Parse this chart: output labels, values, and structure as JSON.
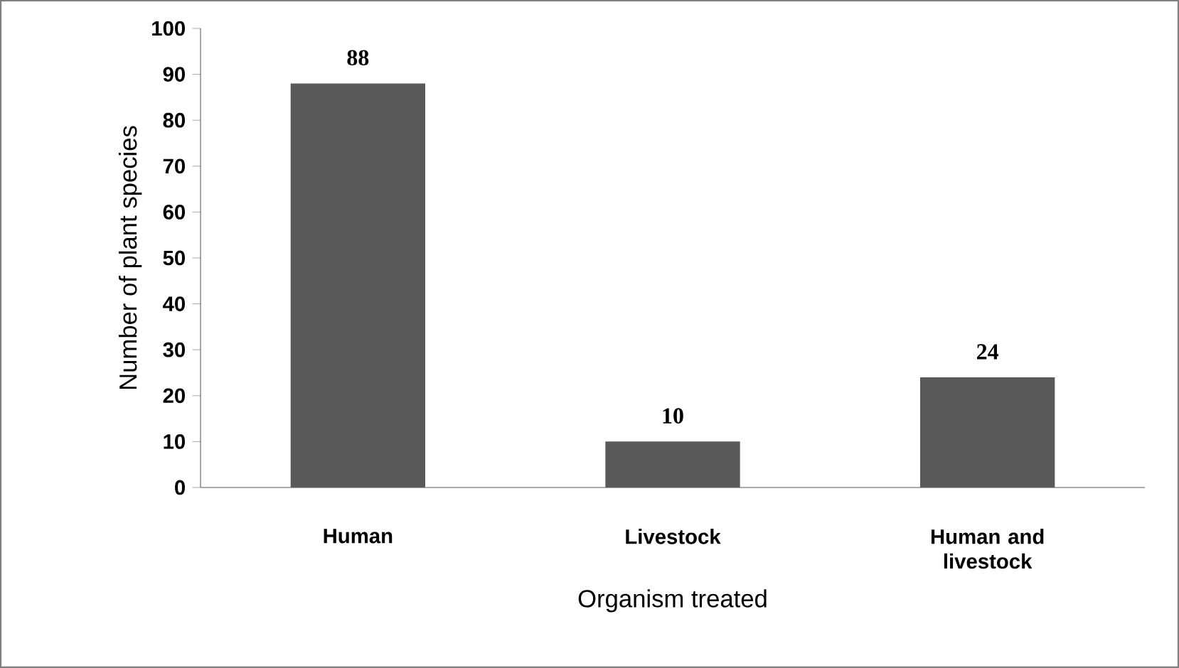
{
  "chart_data": {
    "type": "bar",
    "xlabel": "Organism treated",
    "ylabel": "Number of plant species",
    "categories": [
      "Human",
      "Livestock",
      "Human and livestock"
    ],
    "values": [
      88,
      10,
      24
    ],
    "color": "#595959",
    "data_labels": true,
    "ylim": [
      0,
      100
    ],
    "yticks": [
      0,
      10,
      20,
      30,
      40,
      50,
      60,
      70,
      80,
      90,
      100
    ]
  }
}
